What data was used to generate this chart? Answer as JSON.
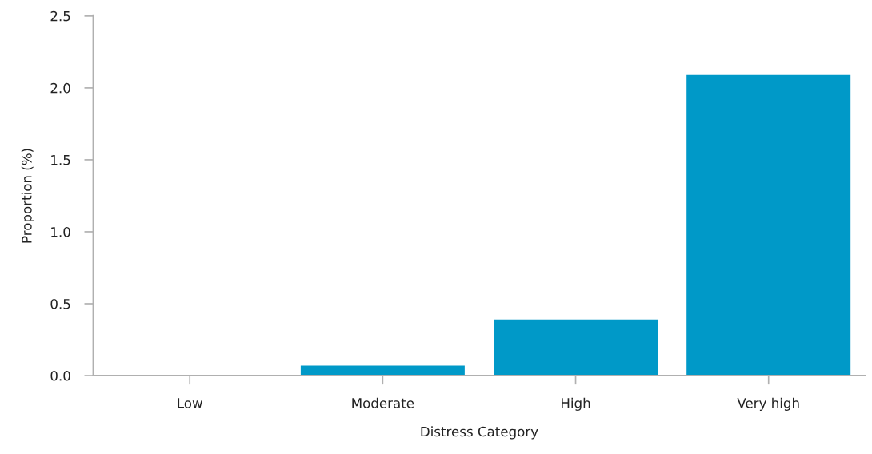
{
  "chart_data": {
    "type": "bar",
    "xlabel": "Distress Category",
    "ylabel": "Proportion (%)",
    "categories": [
      "Low",
      "Moderate",
      "High",
      "Very high"
    ],
    "values": [
      0,
      0.07,
      0.39,
      2.09
    ],
    "color": "#0099c8",
    "ylim": [
      0,
      2.5
    ],
    "yticks": [
      {
        "value": 0,
        "label": "0.0"
      },
      {
        "value": 0.5,
        "label": "0.5"
      },
      {
        "value": 1,
        "label": "1.0"
      },
      {
        "value": 1.5,
        "label": "1.5"
      },
      {
        "value": 2,
        "label": "2.0"
      },
      {
        "value": 2.5,
        "label": "2.5"
      }
    ],
    "grid": false,
    "legend": false
  }
}
